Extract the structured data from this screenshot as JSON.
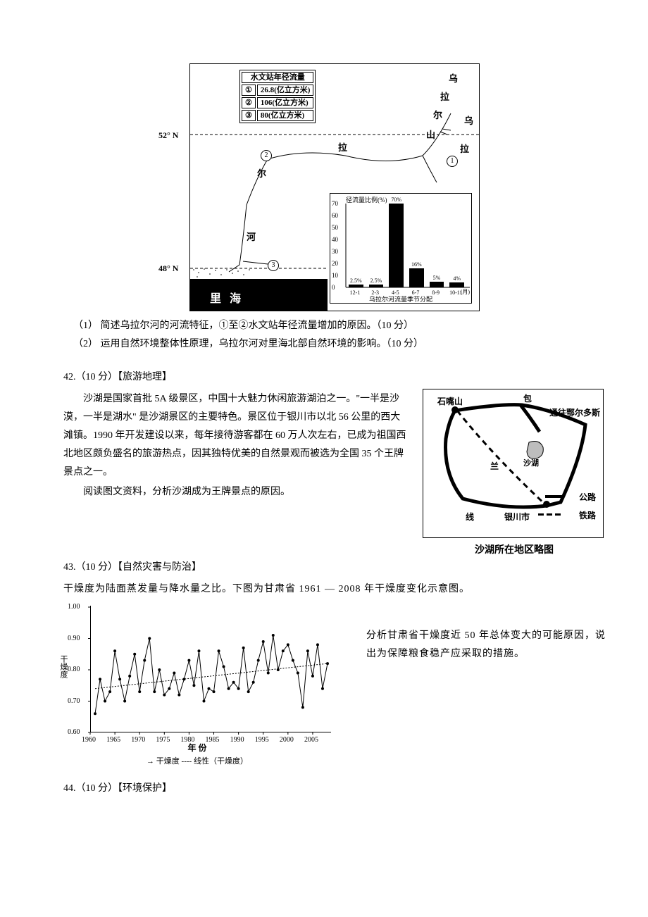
{
  "figure1": {
    "table_header": "水文站年径流量",
    "rows": [
      {
        "id": "①",
        "val": "26.8(亿立方米)"
      },
      {
        "id": "②",
        "val": "106(亿立方米)"
      },
      {
        "id": "③",
        "val": "80(亿立方米)"
      }
    ],
    "lat_upper": "52° N",
    "lat_lower": "48° N",
    "labels": {
      "ural_mtn": "乌 拉 尔 山",
      "ural_r1": "乌",
      "ural_r2": "尔",
      "ural_r3": "拉",
      "ural_r4": "河",
      "caspian": "里 海"
    },
    "bar_chart": {
      "title_y": "径流量比例(%)",
      "y_ticks": [
        0,
        10,
        20,
        30,
        40,
        50,
        60,
        70
      ],
      "x_labels": [
        "12-1",
        "2-3",
        "4-5",
        "6-7",
        "8-9",
        "10-11"
      ],
      "x_unit": "(月)",
      "values": [
        2.5,
        2.5,
        70,
        16,
        5,
        4
      ],
      "value_labels": [
        "2.5%",
        "2.5%",
        "70%",
        "16%",
        "5%",
        "4%"
      ],
      "caption": "乌拉尔河流量季节分配",
      "bar_color": "#000000",
      "background": "#ffffff"
    }
  },
  "q_sub1": "（1）  简述乌拉尔河的河流特征，①至②水文站年径流量增加的原因。（10 分）",
  "q_sub2": "（2）  运用自然环境整体性原理，乌拉尔河对里海北部自然环境的影响。（10 分）",
  "q42_title": "42.（10 分）【旅游地理】",
  "q42_body": [
    "沙湖是国家首批 5A 级景区，中国十大魅力休闲旅游湖泊之一。\"一半是沙漠，一半是湖水\" 是沙湖景区的主要特色。景区位于银川市以北 56 公里的西大滩镇。1990 年开发建设以来，每年接待游客都在 60 万人次左右，已成为祖国西北地区颇负盛名的旅游热点，因其独特优美的自然景观而被选为全国 35 个王牌景点之一。",
    "阅读图文资料，分析沙湖成为王牌景点的原因。"
  ],
  "shahu_map": {
    "labels": {
      "shizuishan": "石嘴山",
      "bao": "包",
      "erdos": "通往鄂尔多斯",
      "shahu": "沙湖",
      "lan": "兰",
      "yinchuan": "银川市",
      "xian": "线",
      "road": "公路",
      "rail": "铁路"
    },
    "caption": "沙湖所在地区略图",
    "road_color": "#000000",
    "lake_color": "#bdbdbd"
  },
  "q43_title": "43.（10 分）【自然灾害与防治】",
  "q43_intro": "干燥度为陆面蒸发量与降水量之比。下图为甘肃省 1961 — 2008 年干燥度变化示意图。",
  "dryness_chart": {
    "type": "line",
    "y_label": "干燥度",
    "x_label": "年  份",
    "y_ticks": [
      0.6,
      0.7,
      0.8,
      0.9,
      1.0
    ],
    "x_ticks": [
      1960,
      1965,
      1970,
      1975,
      1980,
      1985,
      1990,
      1995,
      2000,
      2005
    ],
    "ylim": [
      0.6,
      1.0
    ],
    "xlim": [
      1960,
      2008
    ],
    "series": [
      {
        "year": 1961,
        "v": 0.66
      },
      {
        "year": 1962,
        "v": 0.77
      },
      {
        "year": 1963,
        "v": 0.7
      },
      {
        "year": 1964,
        "v": 0.73
      },
      {
        "year": 1965,
        "v": 0.86
      },
      {
        "year": 1966,
        "v": 0.77
      },
      {
        "year": 1967,
        "v": 0.7
      },
      {
        "year": 1968,
        "v": 0.78
      },
      {
        "year": 1969,
        "v": 0.85
      },
      {
        "year": 1970,
        "v": 0.73
      },
      {
        "year": 1971,
        "v": 0.83
      },
      {
        "year": 1972,
        "v": 0.9
      },
      {
        "year": 1973,
        "v": 0.73
      },
      {
        "year": 1974,
        "v": 0.8
      },
      {
        "year": 1975,
        "v": 0.72
      },
      {
        "year": 1976,
        "v": 0.74
      },
      {
        "year": 1977,
        "v": 0.79
      },
      {
        "year": 1978,
        "v": 0.72
      },
      {
        "year": 1979,
        "v": 0.77
      },
      {
        "year": 1980,
        "v": 0.83
      },
      {
        "year": 1981,
        "v": 0.75
      },
      {
        "year": 1982,
        "v": 0.86
      },
      {
        "year": 1983,
        "v": 0.7
      },
      {
        "year": 1984,
        "v": 0.74
      },
      {
        "year": 1985,
        "v": 0.73
      },
      {
        "year": 1986,
        "v": 0.86
      },
      {
        "year": 1987,
        "v": 0.81
      },
      {
        "year": 1988,
        "v": 0.74
      },
      {
        "year": 1989,
        "v": 0.76
      },
      {
        "year": 1990,
        "v": 0.74
      },
      {
        "year": 1991,
        "v": 0.87
      },
      {
        "year": 1992,
        "v": 0.73
      },
      {
        "year": 1993,
        "v": 0.76
      },
      {
        "year": 1994,
        "v": 0.83
      },
      {
        "year": 1995,
        "v": 0.89
      },
      {
        "year": 1996,
        "v": 0.79
      },
      {
        "year": 1997,
        "v": 0.91
      },
      {
        "year": 1998,
        "v": 0.8
      },
      {
        "year": 1999,
        "v": 0.86
      },
      {
        "year": 2000,
        "v": 0.88
      },
      {
        "year": 2001,
        "v": 0.83
      },
      {
        "year": 2002,
        "v": 0.79
      },
      {
        "year": 2003,
        "v": 0.68
      },
      {
        "year": 2004,
        "v": 0.86
      },
      {
        "year": 2005,
        "v": 0.78
      },
      {
        "year": 2006,
        "v": 0.88
      },
      {
        "year": 2007,
        "v": 0.74
      },
      {
        "year": 2008,
        "v": 0.82
      }
    ],
    "trend": {
      "y1961": 0.74,
      "y2008": 0.82
    },
    "line_color": "#000000",
    "marker": "circle",
    "marker_size": 2,
    "legend": "→ 干燥度  ---- 线性（干燥度）",
    "background": "#ffffff"
  },
  "q43_question": "分析甘肃省干燥度近 50 年总体变大的可能原因，说出为保障粮食稳产应采取的措施。",
  "q44_title": "44.（10 分）【环境保护】"
}
